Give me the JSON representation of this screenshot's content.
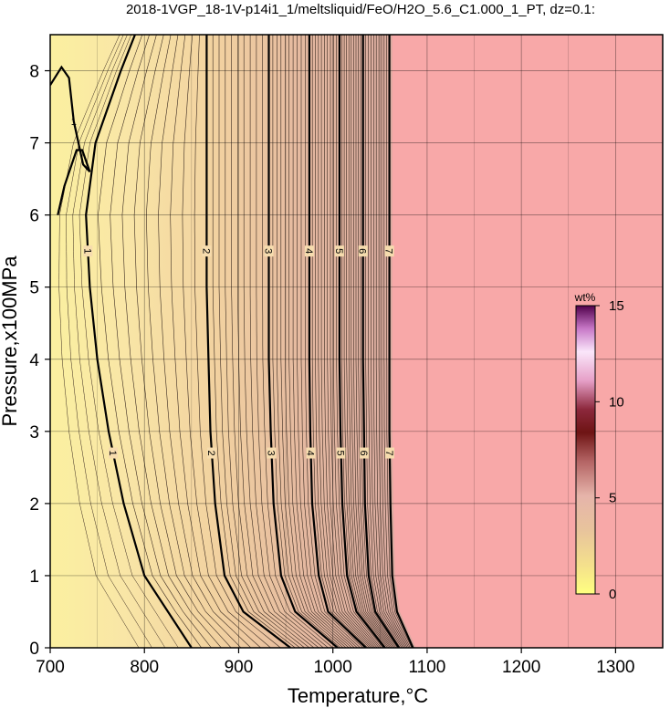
{
  "chart_data": {
    "type": "heatmap",
    "title": "2018-1VGP_18-1V-p14i1_1/meltsliquid/FeO/H2O_5.6_C1.000_1_PT, dz=0.1:",
    "xlabel": "Temperature,°C",
    "ylabel": "Pressure,x100MPa",
    "xlim": [
      700,
      1350
    ],
    "ylim": [
      0,
      8.5
    ],
    "x_ticks": [
      "700",
      "800",
      "900",
      "1000",
      "1100",
      "1200",
      "1300"
    ],
    "y_ticks": [
      "0",
      "1",
      "2",
      "3",
      "4",
      "5",
      "6",
      "7",
      "8"
    ],
    "grid": true,
    "colorbar": {
      "label": "wt%",
      "range": [
        0,
        15
      ],
      "ticks": [
        "0",
        "5",
        "10",
        "15"
      ],
      "placement": "right"
    },
    "no_liquid_region": {
      "color": "#f8a8a8",
      "liquidus_T": 1065
    },
    "major_contours": [
      {
        "label": "1",
        "T_at_P": [
          [
            850,
            0
          ],
          [
            800,
            1
          ],
          [
            778,
            2
          ],
          [
            762,
            3
          ],
          [
            750,
            4
          ],
          [
            742,
            5
          ],
          [
            738,
            6
          ],
          [
            748,
            7
          ],
          [
            775,
            8
          ],
          [
            790,
            8.5
          ]
        ]
      },
      {
        "label": "2",
        "T_at_P": [
          [
            955,
            0
          ],
          [
            905,
            0.5
          ],
          [
            885,
            1
          ],
          [
            875,
            2
          ],
          [
            870,
            3
          ],
          [
            868,
            4
          ],
          [
            866,
            5
          ],
          [
            866,
            6
          ],
          [
            866,
            7
          ],
          [
            866,
            8
          ],
          [
            866,
            8.5
          ]
        ]
      },
      {
        "label": "3",
        "T_at_P": [
          [
            1005,
            0
          ],
          [
            960,
            0.5
          ],
          [
            945,
            1
          ],
          [
            937,
            2
          ],
          [
            934,
            3
          ],
          [
            932,
            4
          ],
          [
            932,
            5
          ],
          [
            932,
            6
          ],
          [
            932,
            7
          ],
          [
            932,
            8
          ],
          [
            932,
            8.5
          ]
        ]
      },
      {
        "label": "4",
        "T_at_P": [
          [
            1035,
            0
          ],
          [
            995,
            0.5
          ],
          [
            985,
            1
          ],
          [
            978,
            2
          ],
          [
            976,
            3
          ],
          [
            975,
            4
          ],
          [
            975,
            5
          ],
          [
            975,
            6
          ],
          [
            975,
            7
          ],
          [
            975,
            8
          ],
          [
            975,
            8.5
          ]
        ]
      },
      {
        "label": "5",
        "T_at_P": [
          [
            1055,
            0
          ],
          [
            1025,
            0.5
          ],
          [
            1015,
            1
          ],
          [
            1010,
            2
          ],
          [
            1008,
            3
          ],
          [
            1007,
            4
          ],
          [
            1007,
            5
          ],
          [
            1007,
            6
          ],
          [
            1007,
            7
          ],
          [
            1007,
            8
          ],
          [
            1007,
            8.5
          ]
        ]
      },
      {
        "label": "6",
        "T_at_P": [
          [
            1070,
            0
          ],
          [
            1045,
            0.5
          ],
          [
            1038,
            1
          ],
          [
            1034,
            2
          ],
          [
            1033,
            3
          ],
          [
            1032,
            4
          ],
          [
            1032,
            5
          ],
          [
            1032,
            6
          ],
          [
            1032,
            7
          ],
          [
            1032,
            8
          ],
          [
            1032,
            8.5
          ]
        ]
      },
      {
        "label": "7",
        "T_at_P": [
          [
            1085,
            0
          ],
          [
            1068,
            0.5
          ],
          [
            1063,
            1
          ],
          [
            1061,
            2
          ],
          [
            1060,
            3
          ],
          [
            1060,
            4
          ],
          [
            1060,
            5
          ],
          [
            1060,
            6
          ],
          [
            1060,
            7
          ],
          [
            1060,
            8
          ],
          [
            1060,
            8.5
          ]
        ]
      }
    ],
    "low_T_contours": [
      {
        "label": "1",
        "T_at_P": [
          [
            700,
            7.8
          ],
          [
            712,
            8.05
          ],
          [
            720,
            7.9
          ],
          [
            725,
            7.3
          ],
          [
            735,
            6.7
          ],
          [
            742,
            6.6
          ],
          [
            734,
            6.9
          ],
          [
            728,
            6.9
          ],
          [
            715,
            6.4
          ],
          [
            708,
            6.0
          ]
        ]
      }
    ]
  }
}
